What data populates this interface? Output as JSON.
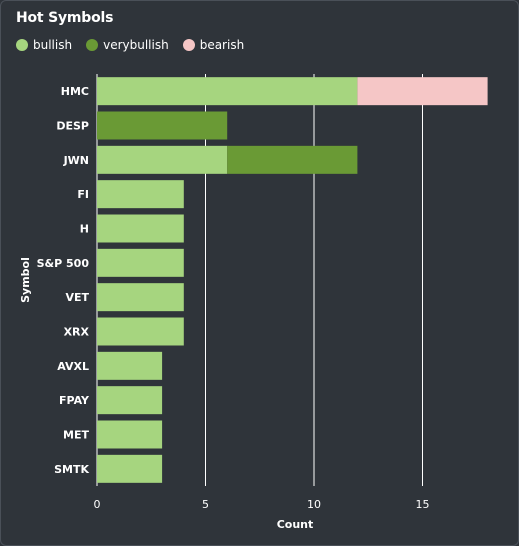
{
  "chart_data": {
    "type": "bar",
    "orientation": "horizontal",
    "stacked": true,
    "title": "Hot Symbols",
    "xlabel": "Count",
    "ylabel": "Symbol",
    "categories": [
      "HMC",
      "DESP",
      "JWN",
      "FI",
      "H",
      "S&P 500",
      "VET",
      "XRX",
      "AVXL",
      "FPAY",
      "MET",
      "SMTK"
    ],
    "series": [
      {
        "name": "bullish",
        "color": "#a6d57f",
        "values": [
          12,
          0,
          6,
          4,
          4,
          4,
          4,
          4,
          3,
          3,
          3,
          3
        ]
      },
      {
        "name": "verybullish",
        "color": "#6a9a35",
        "values": [
          0,
          6,
          6,
          0,
          0,
          0,
          0,
          0,
          0,
          0,
          0,
          0
        ]
      },
      {
        "name": "bearish",
        "color": "#f5c6c6",
        "values": [
          6,
          0,
          0,
          0,
          0,
          0,
          0,
          0,
          0,
          0,
          0,
          0
        ]
      }
    ],
    "xlim": [
      0,
      18
    ],
    "xticks": [
      0,
      5,
      10,
      15
    ],
    "grid": true,
    "legend_position": "top-left"
  }
}
